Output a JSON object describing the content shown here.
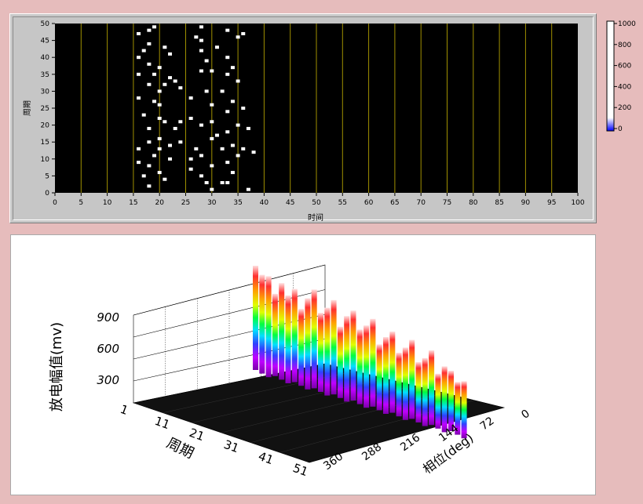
{
  "intensity_graph": {
    "ylabel": "周期",
    "xlabel": "时间",
    "x_ticks": [
      "0",
      "5",
      "10",
      "15",
      "20",
      "25",
      "30",
      "35",
      "40",
      "45",
      "50",
      "55",
      "60",
      "65",
      "70",
      "75",
      "80",
      "85",
      "90",
      "95",
      "100"
    ],
    "y_ticks": [
      "0",
      "5",
      "10",
      "15",
      "20",
      "25",
      "30",
      "35",
      "40",
      "45",
      "50"
    ],
    "points": [
      [
        16,
        35
      ],
      [
        16,
        47
      ],
      [
        16,
        28
      ],
      [
        16,
        40
      ],
      [
        16,
        13
      ],
      [
        16,
        9
      ],
      [
        17,
        23
      ],
      [
        17,
        42
      ],
      [
        17,
        5
      ],
      [
        18,
        48
      ],
      [
        18,
        44
      ],
      [
        18,
        38
      ],
      [
        18,
        32
      ],
      [
        18,
        19
      ],
      [
        18,
        15
      ],
      [
        18,
        8
      ],
      [
        18,
        2
      ],
      [
        19,
        35
      ],
      [
        19,
        27
      ],
      [
        19,
        11
      ],
      [
        19,
        49
      ],
      [
        20,
        30
      ],
      [
        20,
        37
      ],
      [
        20,
        26
      ],
      [
        20,
        22
      ],
      [
        20,
        16
      ],
      [
        20,
        13
      ],
      [
        20,
        6
      ],
      [
        21,
        43
      ],
      [
        21,
        32
      ],
      [
        21,
        21
      ],
      [
        21,
        4
      ],
      [
        22,
        41
      ],
      [
        22,
        34
      ],
      [
        22,
        14
      ],
      [
        22,
        10
      ],
      [
        23,
        33
      ],
      [
        23,
        19
      ],
      [
        24,
        31
      ],
      [
        24,
        21
      ],
      [
        24,
        15
      ],
      [
        26,
        28
      ],
      [
        26,
        22
      ],
      [
        26,
        10
      ],
      [
        26,
        7
      ],
      [
        27,
        13
      ],
      [
        27,
        46
      ],
      [
        28,
        49
      ],
      [
        28,
        45
      ],
      [
        28,
        42
      ],
      [
        28,
        36
      ],
      [
        28,
        20
      ],
      [
        28,
        11
      ],
      [
        28,
        5
      ],
      [
        29,
        39
      ],
      [
        29,
        30
      ],
      [
        29,
        3
      ],
      [
        30,
        36
      ],
      [
        30,
        26
      ],
      [
        30,
        21
      ],
      [
        30,
        16
      ],
      [
        30,
        8
      ],
      [
        30,
        1
      ],
      [
        31,
        43
      ],
      [
        31,
        17
      ],
      [
        32,
        30
      ],
      [
        32,
        13
      ],
      [
        32,
        3
      ],
      [
        33,
        48
      ],
      [
        33,
        40
      ],
      [
        33,
        35
      ],
      [
        33,
        24
      ],
      [
        33,
        18
      ],
      [
        33,
        9
      ],
      [
        33,
        3
      ],
      [
        34,
        37
      ],
      [
        34,
        27
      ],
      [
        34,
        14
      ],
      [
        34,
        6
      ],
      [
        35,
        46
      ],
      [
        35,
        33
      ],
      [
        35,
        20
      ],
      [
        35,
        11
      ],
      [
        36,
        47
      ],
      [
        36,
        25
      ],
      [
        36,
        13
      ],
      [
        37,
        1
      ],
      [
        37,
        19
      ],
      [
        38,
        12
      ]
    ]
  },
  "colorbar": {
    "ticks": [
      "1000",
      "800",
      "600",
      "400",
      "200",
      "0"
    ],
    "colors": [
      "#0000ff",
      "#ffffff"
    ]
  },
  "plot3d": {
    "z_axis_label": "放电幅值(mv)",
    "z_ticks": [
      "900",
      "600",
      "300"
    ],
    "cycle_axis_label": "周期",
    "cycle_ticks": [
      "1",
      "11",
      "21",
      "31",
      "41",
      "51"
    ],
    "phase_axis_label": "相位(deg)",
    "phase_ticks": [
      "0",
      "72",
      "144",
      "216",
      "288",
      "360"
    ],
    "colors": [
      "#ff4040",
      "#ffa500",
      "#ffff00",
      "#00ff00",
      "#00ffff",
      "#0000ff",
      "#aa00ff"
    ]
  }
}
